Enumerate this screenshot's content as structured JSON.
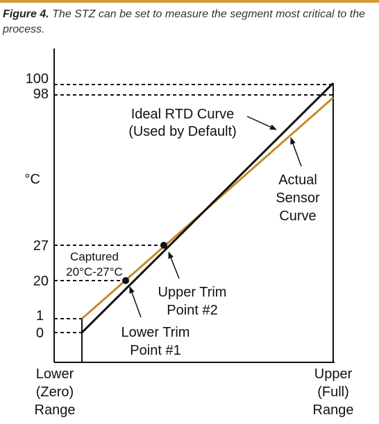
{
  "caption": {
    "figure_label": "Figure 4.",
    "text": "The STZ can be set to measure the segment most critical to the process."
  },
  "colors": {
    "accent_bar": "#d39a3a",
    "ideal_curve": "#111111",
    "actual_curve": "#c9882a",
    "axis": "#111111"
  },
  "chart": {
    "y_unit": "°C",
    "y_ticks": [
      "100",
      "98",
      "27",
      "20",
      "1",
      "0"
    ],
    "x_left_label": [
      "Lower",
      "(Zero)",
      "Range"
    ],
    "x_right_label": [
      "Upper",
      "(Full)",
      "Range"
    ],
    "labels": {
      "ideal": [
        "Ideal RTD Curve",
        "(Used by Default)"
      ],
      "actual": [
        "Actual",
        "Sensor",
        "Curve"
      ],
      "captured": [
        "Captured",
        "20°C-27°C"
      ],
      "upper_trim": [
        "Upper Trim",
        "Point #2"
      ],
      "lower_trim": [
        "Lower Trim",
        "Point #1"
      ]
    }
  },
  "chart_data": {
    "type": "line",
    "title": "",
    "ylabel": "°C",
    "xlabel": "",
    "x_categories": [
      "Lower (Zero) Range",
      "Upper (Full) Range"
    ],
    "series": [
      {
        "name": "Ideal RTD Curve (Used by Default)",
        "points": [
          [
            0,
            0
          ],
          [
            1,
            100
          ]
        ]
      },
      {
        "name": "Actual Sensor Curve",
        "points": [
          [
            0,
            1
          ],
          [
            1,
            98
          ]
        ]
      }
    ],
    "trim_points": [
      {
        "name": "Lower Trim Point #1",
        "y": 20
      },
      {
        "name": "Upper Trim Point #2",
        "y": 27
      }
    ],
    "y_ticks": [
      0,
      1,
      20,
      27,
      98,
      100
    ]
  }
}
